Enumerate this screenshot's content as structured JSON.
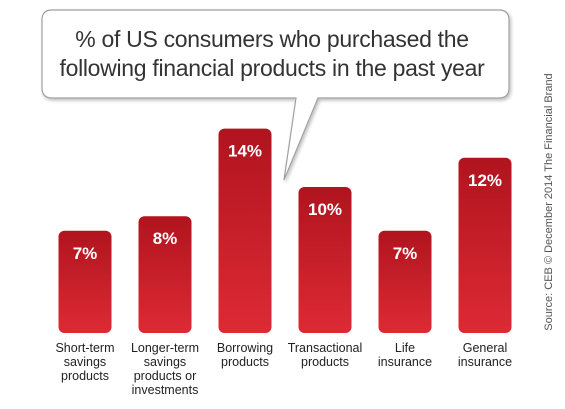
{
  "chart_data": {
    "type": "bar",
    "title": "% of US consumers who purchased the following financial products in the past year",
    "categories": [
      "Short-term\nsavings\nproducts",
      "Longer-term\nsavings\nproducts or\ninvestments",
      "Borrowing\nproducts",
      "Transactional\nproducts",
      "Life\ninsurance",
      "General\ninsurance"
    ],
    "values": [
      7,
      8,
      14,
      10,
      7,
      12
    ],
    "data_labels": [
      "7%",
      "8%",
      "14%",
      "10%",
      "7%",
      "12%"
    ],
    "ylim": [
      0,
      14
    ],
    "grid": false,
    "bar_color_top": "#b0141e",
    "bar_color_bottom": "#dd2a35"
  },
  "callout": {
    "line1": "% of US consumers who purchased the",
    "line2": "following financial products in the past year"
  },
  "source": "Source: CEB © December 2014 The Financial Brand"
}
